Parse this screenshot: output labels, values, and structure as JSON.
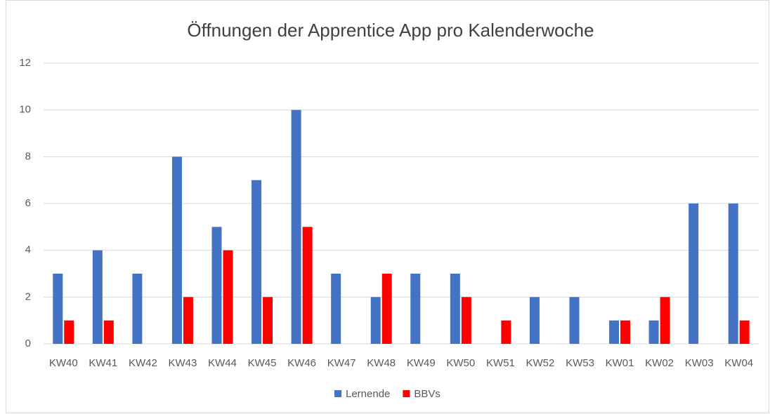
{
  "chart_data": {
    "type": "bar",
    "title": "Öffnungen der Apprentice App pro Kalenderwoche",
    "categories": [
      "KW40",
      "KW41",
      "KW42",
      "KW43",
      "KW44",
      "KW45",
      "KW46",
      "KW47",
      "KW48",
      "KW49",
      "KW50",
      "KW51",
      "KW52",
      "KW53",
      "KW01",
      "KW02",
      "KW03",
      "KW04"
    ],
    "series": [
      {
        "name": "Lernende",
        "color": "#4472c4",
        "values": [
          3,
          4,
          3,
          8,
          5,
          7,
          10,
          3,
          2,
          3,
          3,
          0,
          2,
          2,
          1,
          1,
          6,
          6
        ]
      },
      {
        "name": "BBVs",
        "color": "#ff0000",
        "values": [
          1,
          1,
          0,
          2,
          4,
          2,
          5,
          0,
          3,
          0,
          2,
          1,
          0,
          0,
          1,
          2,
          0,
          1
        ]
      }
    ],
    "ylim": [
      0,
      12
    ],
    "yticks": [
      0,
      2,
      4,
      6,
      8,
      10,
      12
    ],
    "grid": true,
    "legend": "bottom"
  }
}
